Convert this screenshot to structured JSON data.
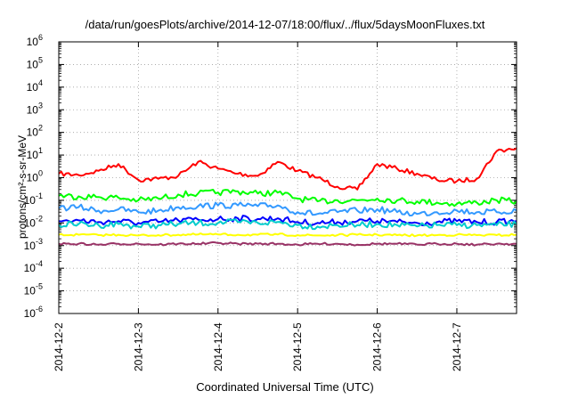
{
  "chart_data": {
    "type": "line",
    "title": "/data/run/goesPlots/archive/2014-12-07/18:00/flux/../flux/5daysMoonFluxes.txt",
    "xlabel": "Coordinated Universal Time (UTC)",
    "ylabel": "protons/cm²-s-sr-MeV",
    "yscale": "log",
    "ylim": [
      1e-06,
      1000000.0
    ],
    "xlim": [
      "2014-12-02",
      "2014-12-07 18:00"
    ],
    "grid": true,
    "x_ticks": [
      "2014-12-2",
      "2014-12-3",
      "2014-12-4",
      "2014-12-5",
      "2014-12-6",
      "2014-12-7"
    ],
    "y_ticks": [
      {
        "base": "10",
        "exp": "6"
      },
      {
        "base": "10",
        "exp": "5"
      },
      {
        "base": "10",
        "exp": "4"
      },
      {
        "base": "10",
        "exp": "3"
      },
      {
        "base": "10",
        "exp": "2"
      },
      {
        "base": "10",
        "exp": "1"
      },
      {
        "base": "10",
        "exp": "0"
      },
      {
        "base": "10",
        "exp": "-1"
      },
      {
        "base": "10",
        "exp": "-2"
      },
      {
        "base": "10",
        "exp": "-3"
      },
      {
        "base": "10",
        "exp": "-4"
      },
      {
        "base": "10",
        "exp": "-5"
      },
      {
        "base": "10",
        "exp": "-6"
      }
    ],
    "series": [
      {
        "color": "#ff0000",
        "x": [
          "2014-12-02 00:00",
          "2014-12-02 06:00",
          "2014-12-02 12:00",
          "2014-12-02 18:00",
          "2014-12-03 00:00",
          "2014-12-03 06:00",
          "2014-12-03 12:00",
          "2014-12-03 18:00",
          "2014-12-04 00:00",
          "2014-12-04 06:00",
          "2014-12-04 12:00",
          "2014-12-04 18:00",
          "2014-12-05 00:00",
          "2014-12-05 06:00",
          "2014-12-05 12:00",
          "2014-12-05 18:00",
          "2014-12-06 00:00",
          "2014-12-06 06:00",
          "2014-12-06 12:00",
          "2014-12-06 18:00",
          "2014-12-07 00:00",
          "2014-12-07 06:00",
          "2014-12-07 12:00",
          "2014-12-07 18:00"
        ],
        "y": [
          1.5,
          1.3,
          2.0,
          4.0,
          0.8,
          0.9,
          1.2,
          5.0,
          2.5,
          1.5,
          1.2,
          5.0,
          2.0,
          1.0,
          0.4,
          0.3,
          4.0,
          2.5,
          1.5,
          0.8,
          0.7,
          0.9,
          15.0,
          20.0
        ]
      },
      {
        "color": "#00ff00",
        "x": [
          "2014-12-02 00:00",
          "2014-12-02 06:00",
          "2014-12-02 12:00",
          "2014-12-02 18:00",
          "2014-12-03 00:00",
          "2014-12-03 06:00",
          "2014-12-03 12:00",
          "2014-12-03 18:00",
          "2014-12-04 00:00",
          "2014-12-04 06:00",
          "2014-12-04 12:00",
          "2014-12-04 18:00",
          "2014-12-05 00:00",
          "2014-12-05 06:00",
          "2014-12-05 12:00",
          "2014-12-05 18:00",
          "2014-12-06 00:00",
          "2014-12-06 06:00",
          "2014-12-06 12:00",
          "2014-12-06 18:00",
          "2014-12-07 00:00",
          "2014-12-07 06:00",
          "2014-12-07 12:00",
          "2014-12-07 18:00"
        ],
        "y": [
          0.16,
          0.15,
          0.14,
          0.13,
          0.1,
          0.12,
          0.18,
          0.2,
          0.22,
          0.25,
          0.2,
          0.22,
          0.12,
          0.09,
          0.1,
          0.1,
          0.12,
          0.1,
          0.09,
          0.08,
          0.07,
          0.08,
          0.1,
          0.09
        ]
      },
      {
        "color": "#3399ff",
        "x": [
          "2014-12-02 00:00",
          "2014-12-02 06:00",
          "2014-12-02 12:00",
          "2014-12-02 18:00",
          "2014-12-03 00:00",
          "2014-12-03 06:00",
          "2014-12-03 12:00",
          "2014-12-03 18:00",
          "2014-12-04 00:00",
          "2014-12-04 06:00",
          "2014-12-04 12:00",
          "2014-12-04 18:00",
          "2014-12-05 00:00",
          "2014-12-05 06:00",
          "2014-12-05 12:00",
          "2014-12-05 18:00",
          "2014-12-06 00:00",
          "2014-12-06 06:00",
          "2014-12-06 12:00",
          "2014-12-06 18:00",
          "2014-12-07 00:00",
          "2014-12-07 06:00",
          "2014-12-07 12:00",
          "2014-12-07 18:00"
        ],
        "y": [
          0.045,
          0.05,
          0.035,
          0.04,
          0.03,
          0.035,
          0.05,
          0.055,
          0.06,
          0.06,
          0.055,
          0.06,
          0.03,
          0.025,
          0.03,
          0.035,
          0.04,
          0.03,
          0.025,
          0.03,
          0.035,
          0.03,
          0.03,
          0.035
        ]
      },
      {
        "color": "#0000ff",
        "x": [
          "2014-12-02 00:00",
          "2014-12-02 06:00",
          "2014-12-02 12:00",
          "2014-12-02 18:00",
          "2014-12-03 00:00",
          "2014-12-03 06:00",
          "2014-12-03 12:00",
          "2014-12-03 18:00",
          "2014-12-04 00:00",
          "2014-12-04 06:00",
          "2014-12-04 12:00",
          "2014-12-04 18:00",
          "2014-12-05 00:00",
          "2014-12-05 06:00",
          "2014-12-05 12:00",
          "2014-12-05 18:00",
          "2014-12-06 00:00",
          "2014-12-06 06:00",
          "2014-12-06 12:00",
          "2014-12-06 18:00",
          "2014-12-07 00:00",
          "2014-12-07 06:00",
          "2014-12-07 12:00",
          "2014-12-07 18:00"
        ],
        "y": [
          0.012,
          0.013,
          0.011,
          0.012,
          0.01,
          0.011,
          0.013,
          0.014,
          0.015,
          0.016,
          0.015,
          0.016,
          0.011,
          0.01,
          0.011,
          0.012,
          0.012,
          0.011,
          0.01,
          0.011,
          0.012,
          0.011,
          0.011,
          0.012
        ]
      },
      {
        "color": "#00cccc",
        "x": [
          "2014-12-02 00:00",
          "2014-12-02 06:00",
          "2014-12-02 12:00",
          "2014-12-02 18:00",
          "2014-12-03 00:00",
          "2014-12-03 06:00",
          "2014-12-03 12:00",
          "2014-12-03 18:00",
          "2014-12-04 00:00",
          "2014-12-04 06:00",
          "2014-12-04 12:00",
          "2014-12-04 18:00",
          "2014-12-05 00:00",
          "2014-12-05 06:00",
          "2014-12-05 12:00",
          "2014-12-05 18:00",
          "2014-12-06 00:00",
          "2014-12-06 06:00",
          "2014-12-06 12:00",
          "2014-12-06 18:00",
          "2014-12-07 00:00",
          "2014-12-07 06:00",
          "2014-12-07 12:00",
          "2014-12-07 18:00"
        ],
        "y": [
          0.008,
          0.009,
          0.008,
          0.009,
          0.007,
          0.008,
          0.009,
          0.01,
          0.01,
          0.011,
          0.01,
          0.011,
          0.008,
          0.007,
          0.008,
          0.008,
          0.009,
          0.008,
          0.007,
          0.008,
          0.008,
          0.008,
          0.008,
          0.009
        ]
      },
      {
        "color": "#ffff00",
        "x": [
          "2014-12-02 00:00",
          "2014-12-02 06:00",
          "2014-12-02 12:00",
          "2014-12-02 18:00",
          "2014-12-03 00:00",
          "2014-12-03 06:00",
          "2014-12-03 12:00",
          "2014-12-03 18:00",
          "2014-12-04 00:00",
          "2014-12-04 06:00",
          "2014-12-04 12:00",
          "2014-12-04 18:00",
          "2014-12-05 00:00",
          "2014-12-05 06:00",
          "2014-12-05 12:00",
          "2014-12-05 18:00",
          "2014-12-06 00:00",
          "2014-12-06 06:00",
          "2014-12-06 12:00",
          "2014-12-06 18:00",
          "2014-12-07 00:00",
          "2014-12-07 06:00",
          "2014-12-07 12:00",
          "2014-12-07 18:00"
        ],
        "y": [
          0.003,
          0.003,
          0.0029,
          0.003,
          0.0028,
          0.0029,
          0.003,
          0.0031,
          0.0031,
          0.003,
          0.003,
          0.0031,
          0.0029,
          0.0028,
          0.0029,
          0.003,
          0.003,
          0.0029,
          0.0028,
          0.0029,
          0.003,
          0.0029,
          0.0029,
          0.003
        ]
      },
      {
        "color": "#993366",
        "x": [
          "2014-12-02 00:00",
          "2014-12-02 06:00",
          "2014-12-02 12:00",
          "2014-12-02 18:00",
          "2014-12-03 00:00",
          "2014-12-03 06:00",
          "2014-12-03 12:00",
          "2014-12-03 18:00",
          "2014-12-04 00:00",
          "2014-12-04 06:00",
          "2014-12-04 12:00",
          "2014-12-04 18:00",
          "2014-12-05 00:00",
          "2014-12-05 06:00",
          "2014-12-05 12:00",
          "2014-12-05 18:00",
          "2014-12-06 00:00",
          "2014-12-06 06:00",
          "2014-12-06 12:00",
          "2014-12-06 18:00",
          "2014-12-07 00:00",
          "2014-12-07 06:00",
          "2014-12-07 12:00",
          "2014-12-07 18:00"
        ],
        "y": [
          0.0012,
          0.0012,
          0.0011,
          0.0012,
          0.0012,
          0.0011,
          0.0012,
          0.0012,
          0.0013,
          0.0012,
          0.0012,
          0.0012,
          0.0011,
          0.0012,
          0.0012,
          0.0011,
          0.0012,
          0.0012,
          0.0011,
          0.0012,
          0.0012,
          0.0011,
          0.0012,
          0.0012
        ]
      }
    ]
  }
}
